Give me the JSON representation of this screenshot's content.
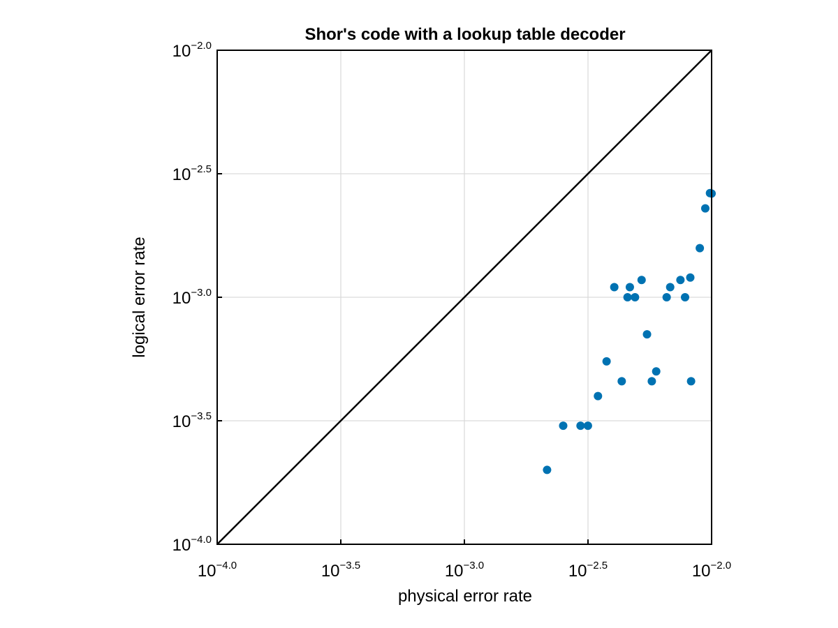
{
  "chart_data": {
    "type": "scatter",
    "title": "Shor's code with a lookup table decoder",
    "xlabel": "physical error rate",
    "ylabel": "logical error rate",
    "xscale": "log10",
    "yscale": "log10",
    "xlim": [
      0.0001,
      0.01
    ],
    "ylim": [
      0.0001,
      0.01
    ],
    "grid": true,
    "tick_exponents": [
      "−4.0",
      "−3.5",
      "−3.0",
      "−2.5",
      "−2.0"
    ],
    "tick_base": "10",
    "point_color": "#0072b2",
    "reference_line": {
      "from": [
        0.0001,
        0.0001
      ],
      "to": [
        0.01,
        0.01
      ],
      "color": "#000000"
    },
    "series": [
      {
        "x": [
          0.00216,
          0.00251,
          0.00295,
          0.00316,
          0.00347,
          0.00376,
          0.00404,
          0.00433,
          0.00457,
          0.00467,
          0.0049,
          0.00521,
          0.00548,
          0.00573,
          0.00597,
          0.00658,
          0.0068,
          0.00748,
          0.00781,
          0.0082,
          0.00826,
          0.00896,
          0.00943,
          0.00985,
          0.01
        ],
        "y": [
          0.0002,
          0.000302,
          0.000302,
          0.000302,
          0.000398,
          0.00055,
          0.001099,
          0.000457,
          0.001,
          0.001099,
          0.001,
          0.001175,
          0.000708,
          0.000457,
          0.000501,
          0.001,
          0.001099,
          0.001175,
          0.001,
          0.001202,
          0.000457,
          0.00158,
          0.00229,
          0.00264,
          0.00263
        ]
      }
    ]
  }
}
